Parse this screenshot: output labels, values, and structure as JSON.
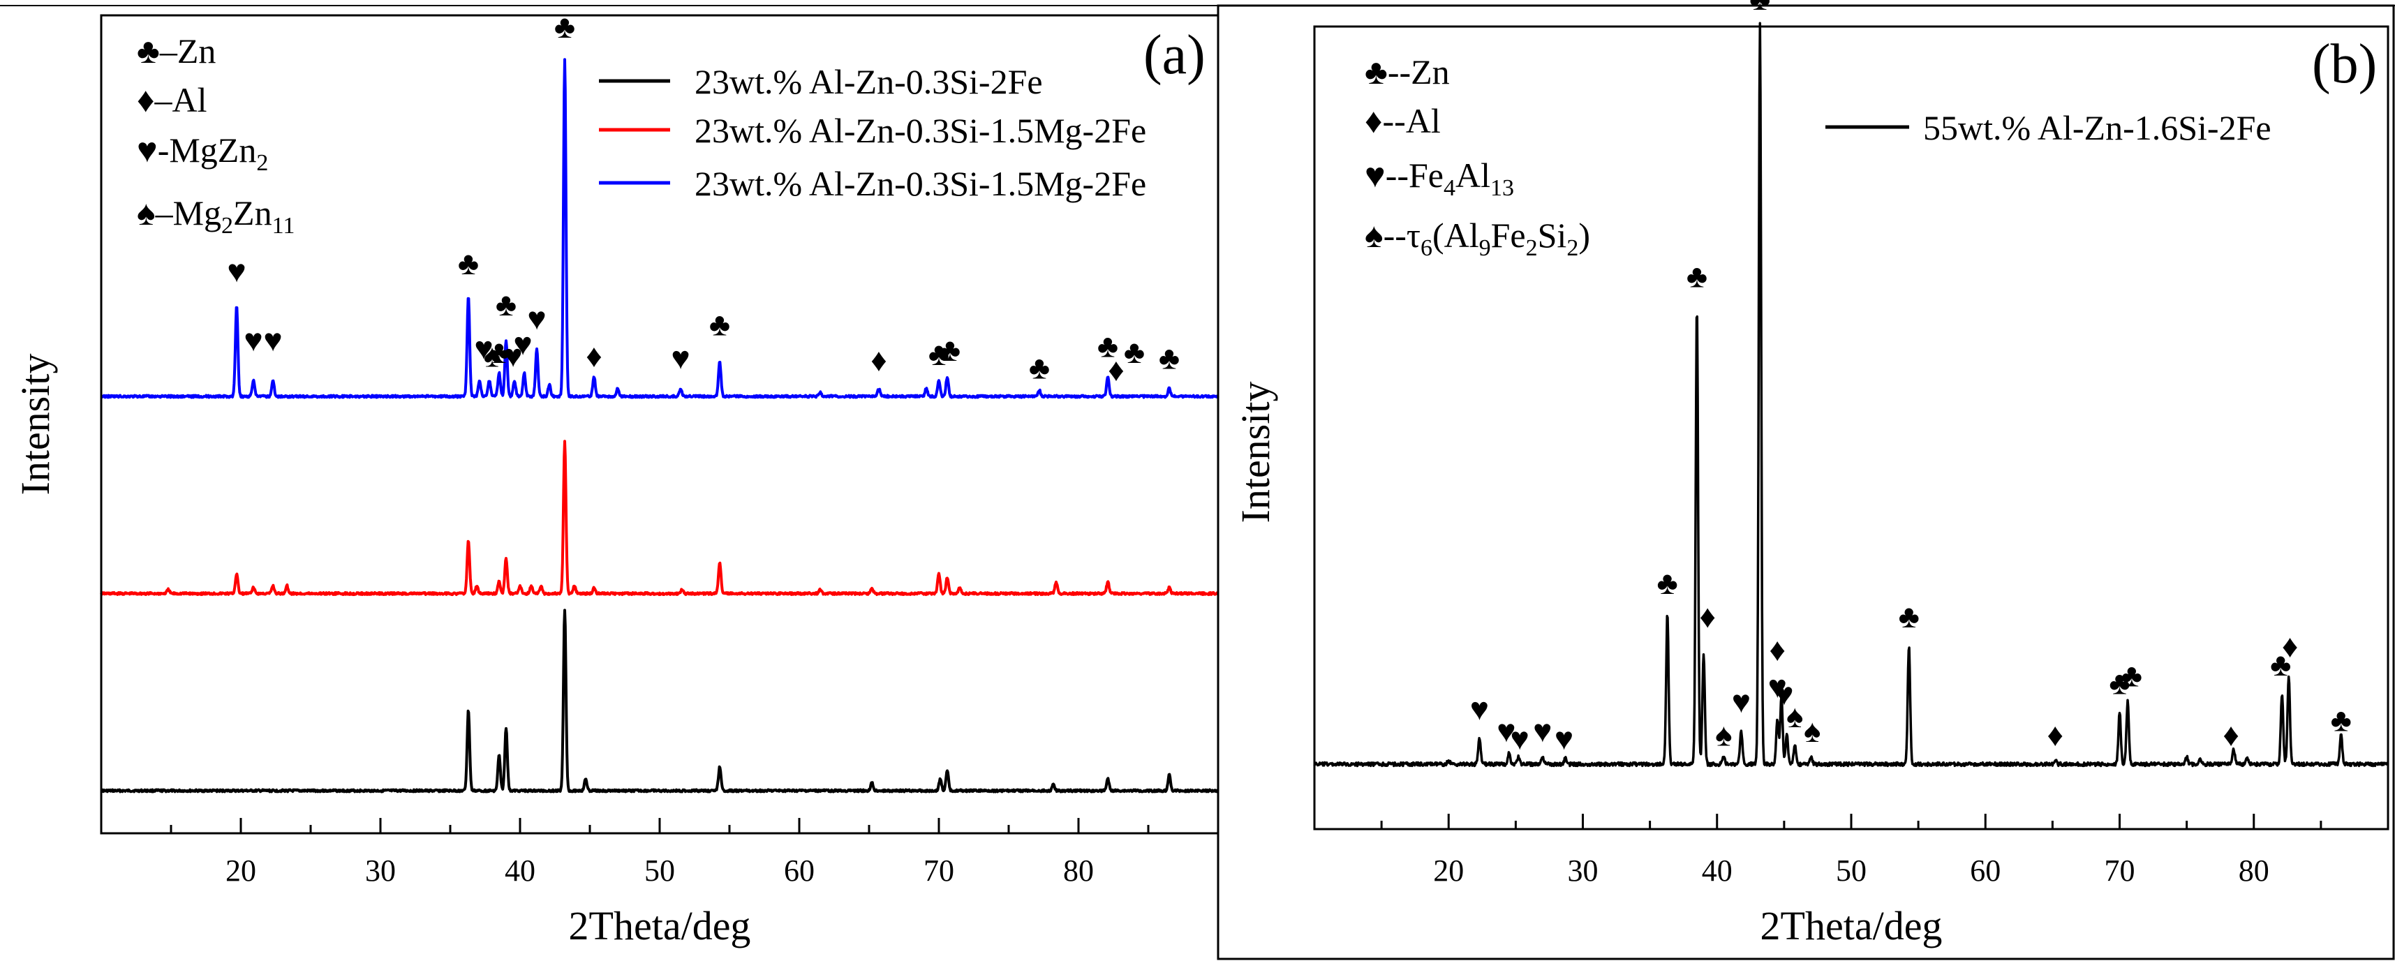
{
  "colors": {
    "black": "#000000",
    "red": "#ff0000",
    "blue": "#0000ff"
  },
  "chart_data": [
    {
      "panel": "(a)",
      "type": "line",
      "xlabel": "2Theta/deg",
      "ylabel": "Intensity",
      "xlim": [
        10,
        90
      ],
      "xticks": [
        20,
        30,
        40,
        50,
        60,
        70,
        80
      ],
      "yticks_shown": false,
      "phase_key": [
        {
          "symbol": "♣",
          "label": "–Zn"
        },
        {
          "symbol": "♦",
          "label": "–Al"
        },
        {
          "symbol": "♥",
          "label": "-MgZn",
          "sub": "2"
        },
        {
          "symbol": "♠",
          "label": "–Mg",
          "sub": "2",
          "label2": "Zn",
          "sub2": "11"
        }
      ],
      "legend": [
        {
          "name": "23wt.% Al-Zn-0.3Si-2Fe",
          "color": "#000000"
        },
        {
          "name": "23wt.% Al-Zn-0.3Si-1.5Mg-2Fe",
          "color": "#ff0000"
        },
        {
          "name": "23wt.% Al-Zn-0.3Si-1.5Mg-2Fe",
          "color": "#0000ff"
        }
      ],
      "series": [
        {
          "name": "23wt.% Al-Zn-0.3Si-2Fe",
          "color": "#000000",
          "offset": 0,
          "peaks": [
            [
              36.3,
              0.205
            ],
            [
              38.5,
              0.09
            ],
            [
              39.0,
              0.16
            ],
            [
              43.2,
              0.46
            ],
            [
              44.7,
              0.03
            ],
            [
              54.3,
              0.06
            ],
            [
              65.2,
              0.02
            ],
            [
              70.1,
              0.03
            ],
            [
              70.6,
              0.05
            ],
            [
              78.2,
              0.015
            ],
            [
              82.1,
              0.03
            ],
            [
              86.5,
              0.04
            ]
          ]
        },
        {
          "name": "23wt.% Al-Zn-0.3Si-1.5Mg-2Fe",
          "color": "#ff0000",
          "offset": 0.5,
          "peaks": [
            [
              14.8,
              0.01
            ],
            [
              19.7,
              0.05
            ],
            [
              20.9,
              0.015
            ],
            [
              22.3,
              0.02
            ],
            [
              23.3,
              0.02
            ],
            [
              36.3,
              0.135
            ],
            [
              36.9,
              0.02
            ],
            [
              38.5,
              0.03
            ],
            [
              39.0,
              0.09
            ],
            [
              40.0,
              0.02
            ],
            [
              40.8,
              0.02
            ],
            [
              41.5,
              0.02
            ],
            [
              43.2,
              0.385
            ],
            [
              43.9,
              0.02
            ],
            [
              45.3,
              0.015
            ],
            [
              51.6,
              0.01
            ],
            [
              54.3,
              0.08
            ],
            [
              61.5,
              0.01
            ],
            [
              65.2,
              0.015
            ],
            [
              70.0,
              0.05
            ],
            [
              70.6,
              0.04
            ],
            [
              71.5,
              0.015
            ],
            [
              78.4,
              0.03
            ],
            [
              82.1,
              0.03
            ],
            [
              86.5,
              0.015
            ]
          ]
        },
        {
          "name": "23wt.% Al-Zn-0.3Si-1.5Mg-2Fe",
          "color": "#0000ff",
          "offset": 1.0,
          "peaks": [
            [
              19.7,
              0.23
            ],
            [
              20.9,
              0.04
            ],
            [
              22.3,
              0.04
            ],
            [
              36.3,
              0.255
            ],
            [
              37.1,
              0.04
            ],
            [
              37.8,
              0.04
            ],
            [
              38.5,
              0.06
            ],
            [
              39.0,
              0.14
            ],
            [
              39.6,
              0.04
            ],
            [
              40.3,
              0.06
            ],
            [
              41.2,
              0.12
            ],
            [
              42.1,
              0.03
            ],
            [
              43.2,
              0.855
            ],
            [
              45.3,
              0.05
            ],
            [
              47.0,
              0.02
            ],
            [
              51.5,
              0.02
            ],
            [
              54.3,
              0.09
            ],
            [
              61.5,
              0.01
            ],
            [
              65.7,
              0.02
            ],
            [
              69.1,
              0.02
            ],
            [
              70.0,
              0.04
            ],
            [
              70.6,
              0.05
            ],
            [
              77.2,
              0.015
            ],
            [
              82.1,
              0.05
            ],
            [
              86.5,
              0.02
            ]
          ]
        }
      ],
      "peak_labels": [
        {
          "x": 19.7,
          "y": 1.29,
          "symbol": "♥"
        },
        {
          "x": 20.9,
          "y": 1.115,
          "symbol": "♥"
        },
        {
          "x": 22.3,
          "y": 1.115,
          "symbol": "♥"
        },
        {
          "x": 36.3,
          "y": 1.31,
          "symbol": "♣"
        },
        {
          "x": 37.4,
          "y": 1.095,
          "symbol": "♥"
        },
        {
          "x": 38.0,
          "y": 1.075,
          "symbol": "♠"
        },
        {
          "x": 38.5,
          "y": 1.085,
          "symbol": "♣"
        },
        {
          "x": 39.0,
          "y": 1.205,
          "symbol": "♣"
        },
        {
          "x": 39.5,
          "y": 1.075,
          "symbol": "♥"
        },
        {
          "x": 40.2,
          "y": 1.105,
          "symbol": "♥"
        },
        {
          "x": 41.2,
          "y": 1.17,
          "symbol": "♥"
        },
        {
          "x": 43.2,
          "y": 1.91,
          "symbol": "♣"
        },
        {
          "x": 45.3,
          "y": 1.075,
          "symbol": "♦"
        },
        {
          "x": 51.5,
          "y": 1.07,
          "symbol": "♥"
        },
        {
          "x": 54.3,
          "y": 1.155,
          "symbol": "♣"
        },
        {
          "x": 65.7,
          "y": 1.065,
          "symbol": "♦"
        },
        {
          "x": 70.0,
          "y": 1.08,
          "symbol": "♣"
        },
        {
          "x": 70.8,
          "y": 1.09,
          "symbol": "♣"
        },
        {
          "x": 77.2,
          "y": 1.045,
          "symbol": "♣"
        },
        {
          "x": 82.1,
          "y": 1.1,
          "symbol": "♣"
        },
        {
          "x": 82.7,
          "y": 1.04,
          "symbol": "♦"
        },
        {
          "x": 84.0,
          "y": 1.085,
          "symbol": "♣"
        },
        {
          "x": 86.5,
          "y": 1.07,
          "symbol": "♣"
        }
      ]
    },
    {
      "panel": "(b)",
      "type": "line",
      "xlabel": "2Theta/deg",
      "ylabel": "Intensity",
      "xlim": [
        10,
        90
      ],
      "xticks": [
        20,
        30,
        40,
        50,
        60,
        70,
        80
      ],
      "yticks_shown": false,
      "phase_key": [
        {
          "symbol": "♣",
          "label": "--Zn"
        },
        {
          "symbol": "♦",
          "label": "--Al"
        },
        {
          "symbol": "♥",
          "label": "--Fe",
          "sub": "4",
          "label2": "Al",
          "sub2": "13"
        },
        {
          "symbol": "♠",
          "label": "--τ",
          "sub": "6",
          "label2": "(Al",
          "sub2": "9",
          "label3": "Fe",
          "sub3": "2",
          "label4": "Si",
          "sub4": "2",
          "label5": ")"
        }
      ],
      "legend": [
        {
          "name": "55wt.% Al-Zn-1.6Si-2Fe",
          "color": "#000000"
        }
      ],
      "series": [
        {
          "name": "55wt.% Al-Zn-1.6Si-2Fe",
          "color": "#000000",
          "offset": 0,
          "peaks": [
            [
              20.0,
              0.005
            ],
            [
              22.3,
              0.035
            ],
            [
              24.5,
              0.015
            ],
            [
              25.2,
              0.01
            ],
            [
              27.0,
              0.01
            ],
            [
              28.7,
              0.008
            ],
            [
              36.3,
              0.205
            ],
            [
              38.5,
              0.62
            ],
            [
              39.0,
              0.15
            ],
            [
              40.5,
              0.01
            ],
            [
              41.8,
              0.045
            ],
            [
              43.2,
              1.0
            ],
            [
              44.5,
              0.06
            ],
            [
              44.8,
              0.09
            ],
            [
              45.2,
              0.04
            ],
            [
              45.8,
              0.025
            ],
            [
              47.0,
              0.01
            ],
            [
              54.3,
              0.16
            ],
            [
              65.2,
              0.005
            ],
            [
              70.0,
              0.07
            ],
            [
              70.6,
              0.085
            ],
            [
              75.0,
              0.01
            ],
            [
              76.0,
              0.008
            ],
            [
              78.5,
              0.02
            ],
            [
              79.5,
              0.01
            ],
            [
              82.1,
              0.095
            ],
            [
              82.6,
              0.12
            ],
            [
              86.5,
              0.04
            ]
          ]
        }
      ],
      "peak_labels": [
        {
          "x": 22.3,
          "y": 0.06,
          "symbol": "♥"
        },
        {
          "x": 24.3,
          "y": 0.03,
          "symbol": "♥"
        },
        {
          "x": 25.3,
          "y": 0.02,
          "symbol": "♥"
        },
        {
          "x": 27.0,
          "y": 0.03,
          "symbol": "♥"
        },
        {
          "x": 28.6,
          "y": 0.02,
          "symbol": "♥"
        },
        {
          "x": 36.3,
          "y": 0.23,
          "symbol": "♣"
        },
        {
          "x": 38.5,
          "y": 0.645,
          "symbol": "♣"
        },
        {
          "x": 39.3,
          "y": 0.185,
          "symbol": "♦"
        },
        {
          "x": 40.5,
          "y": 0.025,
          "symbol": "♠"
        },
        {
          "x": 41.8,
          "y": 0.07,
          "symbol": "♥"
        },
        {
          "x": 43.2,
          "y": 1.02,
          "symbol": "♣"
        },
        {
          "x": 44.5,
          "y": 0.14,
          "symbol": "♦"
        },
        {
          "x": 44.5,
          "y": 0.09,
          "symbol": "♥"
        },
        {
          "x": 45.0,
          "y": 0.08,
          "symbol": "♥"
        },
        {
          "x": 45.8,
          "y": 0.05,
          "symbol": "♠"
        },
        {
          "x": 47.1,
          "y": 0.03,
          "symbol": "♠"
        },
        {
          "x": 54.3,
          "y": 0.185,
          "symbol": "♣"
        },
        {
          "x": 65.2,
          "y": 0.025,
          "symbol": "♦"
        },
        {
          "x": 70.0,
          "y": 0.095,
          "symbol": "♣"
        },
        {
          "x": 70.9,
          "y": 0.105,
          "symbol": "♣"
        },
        {
          "x": 78.3,
          "y": 0.025,
          "symbol": "♦"
        },
        {
          "x": 82.0,
          "y": 0.12,
          "symbol": "♣"
        },
        {
          "x": 82.7,
          "y": 0.145,
          "symbol": "♦"
        },
        {
          "x": 86.5,
          "y": 0.045,
          "symbol": "♣"
        }
      ]
    }
  ]
}
